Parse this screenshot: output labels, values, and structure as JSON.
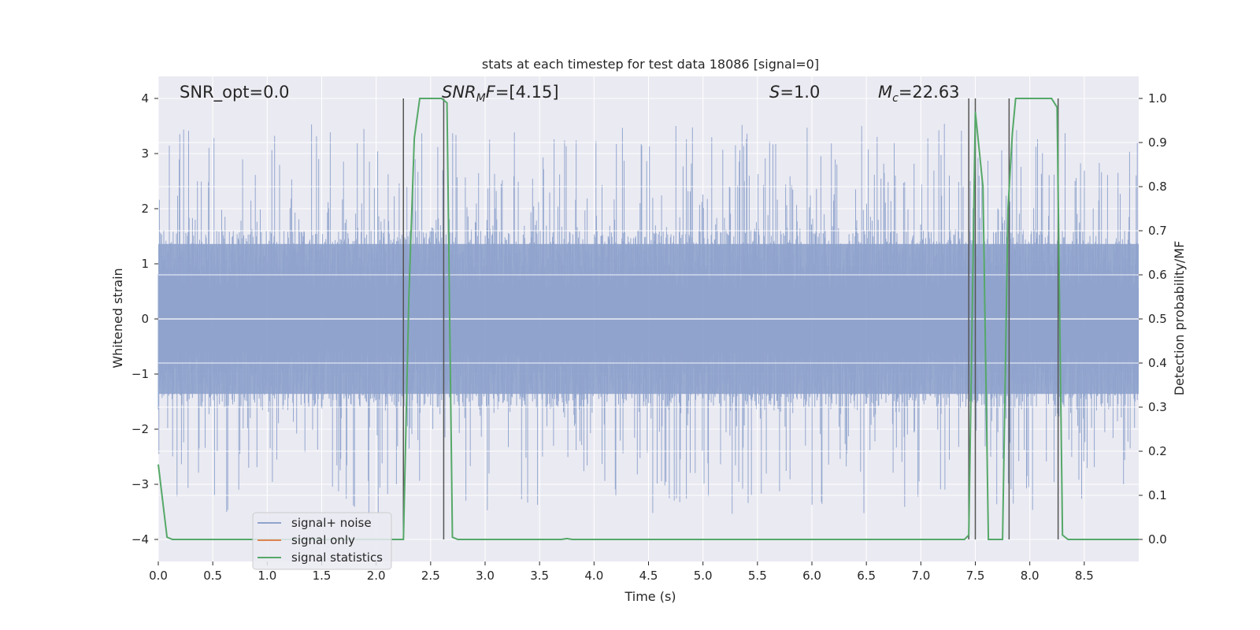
{
  "chart_data": {
    "type": "line",
    "title": "stats at each timestep for test data 18086 [signal=0]",
    "xlabel": "Time (s)",
    "ylabel_left": "Whitened strain",
    "ylabel_right": "Detection probability/MF",
    "xlim": [
      0.0,
      9.0
    ],
    "ylim_left": [
      -4.4,
      4.4
    ],
    "ylim_right": [
      -0.05,
      1.05
    ],
    "x_ticks": [
      0.0,
      0.5,
      1.0,
      1.5,
      2.0,
      2.5,
      3.0,
      3.5,
      4.0,
      4.5,
      5.0,
      5.5,
      6.0,
      6.5,
      7.0,
      7.5,
      8.0,
      8.5
    ],
    "x_tick_labels": [
      "0.0",
      "0.5",
      "1.0",
      "1.5",
      "2.0",
      "2.5",
      "3.0",
      "3.5",
      "4.0",
      "4.5",
      "5.0",
      "5.5",
      "6.0",
      "6.5",
      "7.0",
      "7.5",
      "8.0",
      "8.5"
    ],
    "y_ticks_left": [
      -4,
      -3,
      -2,
      -1,
      0,
      1,
      2,
      3,
      4
    ],
    "y_tick_labels_left": [
      "−4",
      "−3",
      "−2",
      "−1",
      "0",
      "1",
      "2",
      "3",
      "4"
    ],
    "y_ticks_right": [
      0.0,
      0.1,
      0.2,
      0.3,
      0.4,
      0.5,
      0.6,
      0.7,
      0.8,
      0.9,
      1.0
    ],
    "y_tick_labels_right": [
      "0.0",
      "0.1",
      "0.2",
      "0.3",
      "0.4",
      "0.5",
      "0.6",
      "0.7",
      "0.8",
      "0.9",
      "1.0"
    ],
    "grid": true,
    "legend_position": "lower-left",
    "series": [
      {
        "name": "signal+ noise",
        "color": "#8fa3cc",
        "axis": "left",
        "kind": "noise",
        "dense_band": [
          -1.6,
          1.6
        ],
        "peak_max": 3.55,
        "trough_min": -3.55
      },
      {
        "name": "signal only",
        "color": "#dd8452",
        "axis": "left",
        "x": [],
        "y": []
      },
      {
        "name": "signal statistics",
        "color": "#55a868",
        "axis": "right",
        "x": [
          0.0,
          0.08,
          0.13,
          2.25,
          2.3,
          2.35,
          2.4,
          2.6,
          2.65,
          2.7,
          2.75,
          3.7,
          3.75,
          3.8,
          7.4,
          7.44,
          7.5,
          7.57,
          7.62,
          7.75,
          7.8,
          7.84,
          7.87,
          8.2,
          8.25,
          8.3,
          8.35,
          9.0
        ],
        "y": [
          0.17,
          0.005,
          0.0,
          0.0,
          0.55,
          0.91,
          1.0,
          1.0,
          0.99,
          0.005,
          0.0,
          0.0,
          0.002,
          0.0,
          0.0,
          0.01,
          0.97,
          0.8,
          0.0,
          0.0,
          0.75,
          0.92,
          1.0,
          1.0,
          0.98,
          0.01,
          0.0,
          0.0
        ]
      }
    ],
    "vertical_lines_x": [
      2.25,
      2.62,
      7.44,
      7.5,
      7.81,
      8.26
    ],
    "vertical_line_color": "#555555",
    "annotations": [
      "SNR_opt=0.0",
      "[4.15]",
      "1.0",
      "22.63"
    ]
  },
  "annotation_labels": {
    "snr_opt": "SNR_opt=0.0",
    "snr_mf_symbol": "SNR",
    "snr_mf_sub": "M",
    "snr_mf_suffix": "F=",
    "snr_mf_value": "[4.15]",
    "s_symbol": "S",
    "s_value": "=1.0",
    "mc_symbol": "M",
    "mc_sub": "c",
    "mc_value": "=22.63"
  },
  "colors": {
    "axes_background": "#eaeaf2",
    "grid": "#ffffff"
  }
}
